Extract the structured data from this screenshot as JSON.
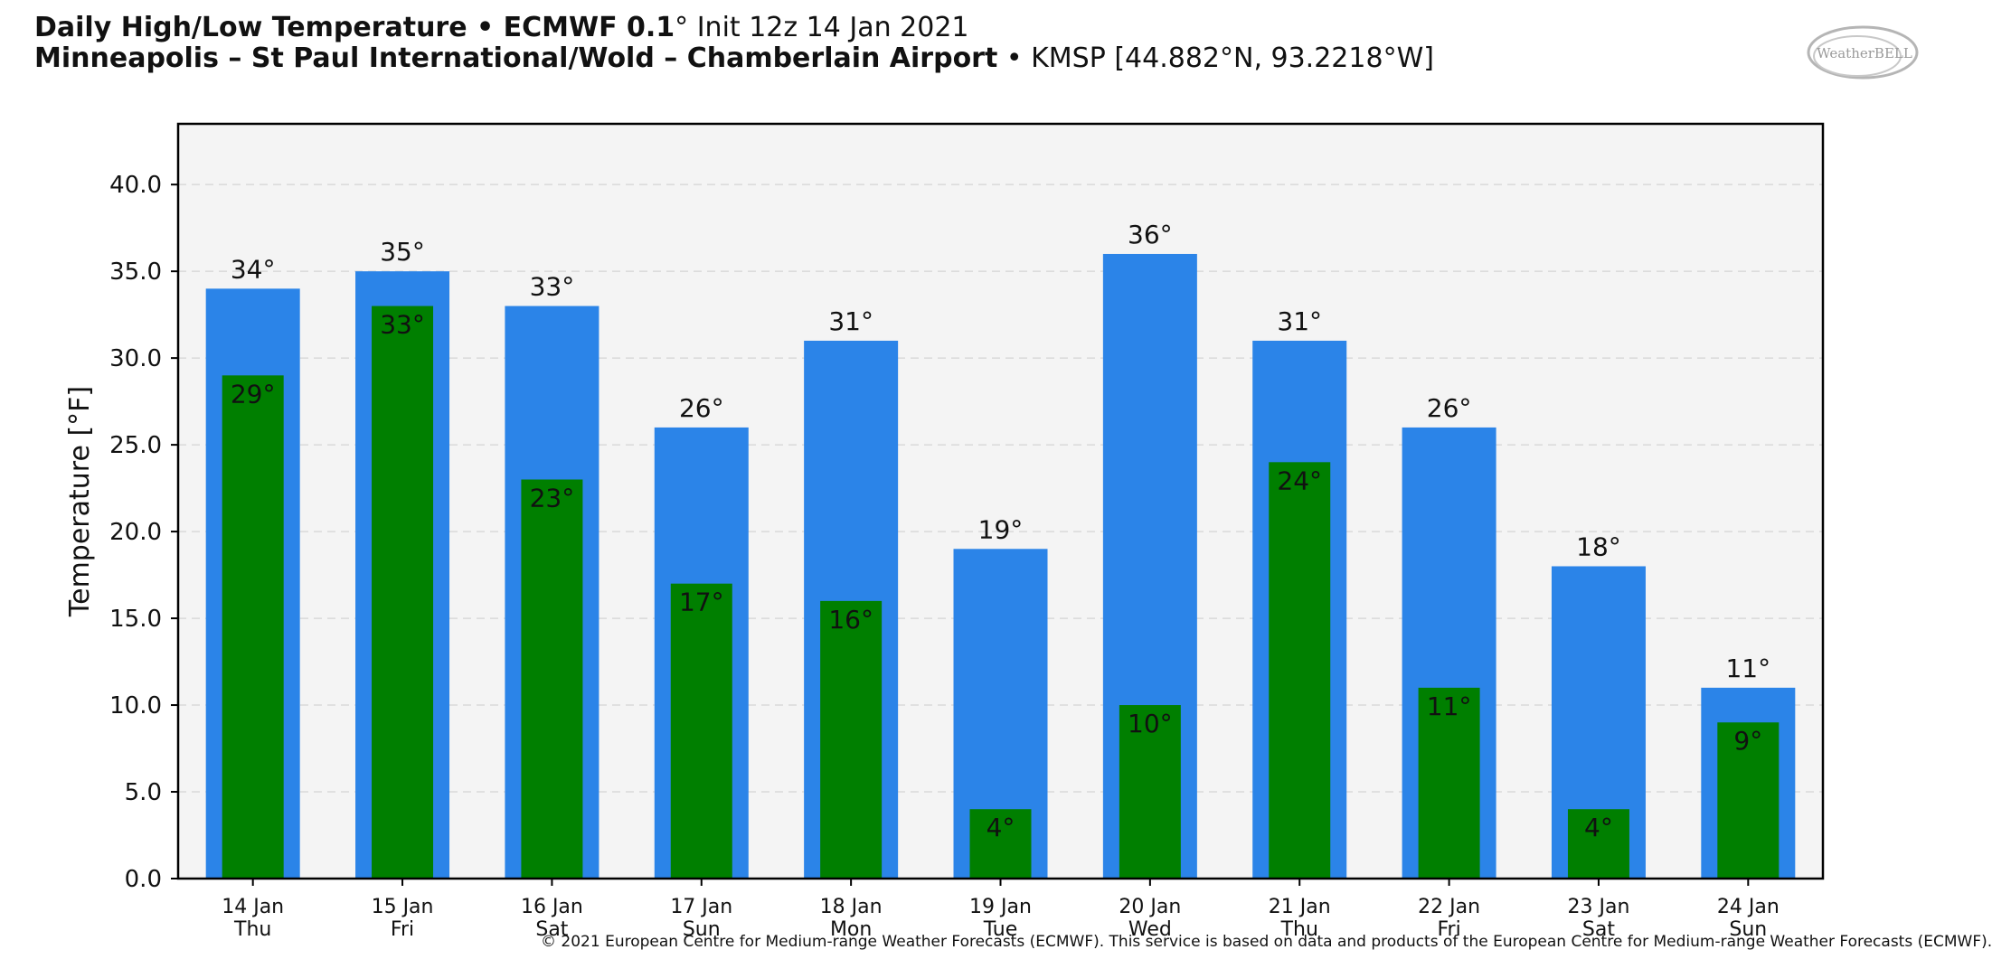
{
  "header": {
    "title_bold": "Daily High/Low Temperature • ECMWF 0.1",
    "title_normal": "° Init 12z 14 Jan 2021",
    "station_bold": "Minneapolis – St Paul International/Wold – Chamberlain Airport",
    "station_normal": " • KMSP [44.882°N, 93.2218°W]"
  },
  "logo": {
    "text": "WeatherBELL"
  },
  "credit": "© 2021 European Centre for Medium-range Weather Forecasts (ECMWF). This service is based on data and products of the European Centre for Medium-range Weather Forecasts (ECMWF).",
  "colors": {
    "high": "#2b84e8",
    "low": "#007f00",
    "plot_bg": "#f4f4f4",
    "grid": "#d9d9d9"
  },
  "chart_data": {
    "type": "bar",
    "title": "Daily High/Low Temperature • ECMWF 0.1° Init 12z 14 Jan 2021",
    "xlabel": "",
    "ylabel": "Temperature [°F]",
    "ylim": [
      0,
      43.5
    ],
    "yticks": [
      "0.0",
      "5.0",
      "10.0",
      "15.0",
      "20.0",
      "25.0",
      "30.0",
      "35.0",
      "40.0"
    ],
    "grid": true,
    "categories": [
      [
        "14 Jan",
        "Thu"
      ],
      [
        "15 Jan",
        "Fri"
      ],
      [
        "16 Jan",
        "Sat"
      ],
      [
        "17 Jan",
        "Sun"
      ],
      [
        "18 Jan",
        "Mon"
      ],
      [
        "19 Jan",
        "Tue"
      ],
      [
        "20 Jan",
        "Wed"
      ],
      [
        "21 Jan",
        "Thu"
      ],
      [
        "22 Jan",
        "Fri"
      ],
      [
        "23 Jan",
        "Sat"
      ],
      [
        "24 Jan",
        "Sun"
      ]
    ],
    "series": [
      {
        "values": [
          34,
          35,
          33,
          26,
          31,
          19,
          36,
          31,
          26,
          18,
          11
        ],
        "labels": [
          "34°",
          "35°",
          "33°",
          "26°",
          "31°",
          "19°",
          "36°",
          "31°",
          "26°",
          "18°",
          "11°"
        ]
      },
      {
        "values": [
          29,
          33,
          23,
          17,
          16,
          4,
          10,
          24,
          11,
          4,
          9
        ],
        "labels": [
          "29°",
          "33°",
          "23°",
          "17°",
          "16°",
          "4°",
          "10°",
          "24°",
          "11°",
          "4°",
          "9°"
        ]
      }
    ]
  }
}
